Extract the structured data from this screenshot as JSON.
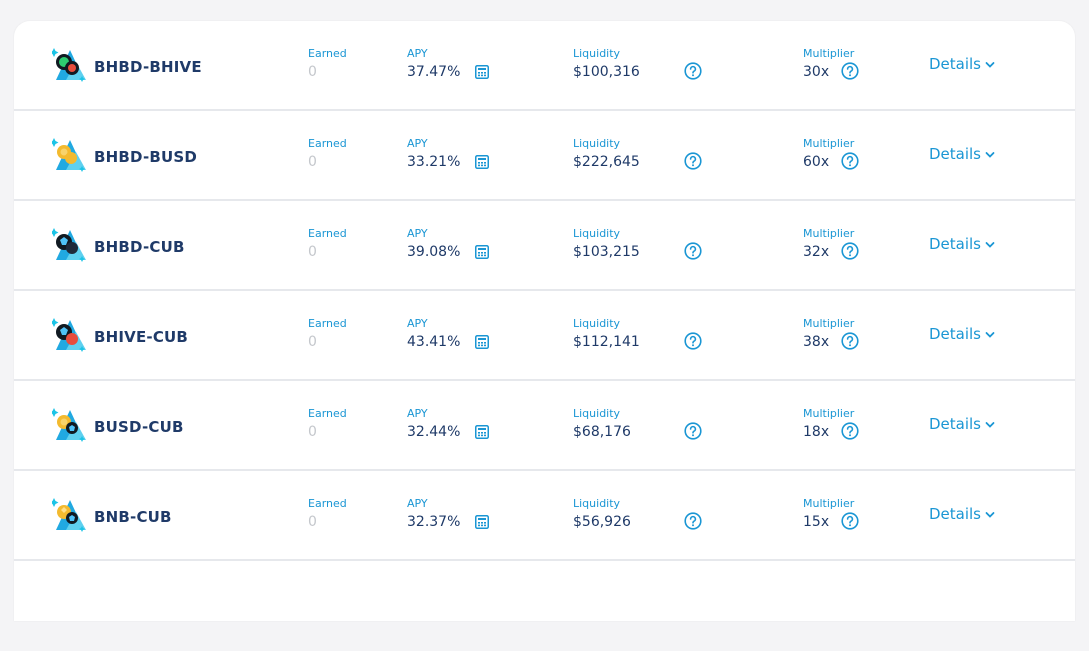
{
  "labels": {
    "earned": "Earned",
    "apy": "APY",
    "liquidity": "Liquidity",
    "multiplier": "Multiplier",
    "details": "Details"
  },
  "colors": {
    "accent": "#1a96d4",
    "text_dark": "#1f3a68",
    "muted": "#c4c7cc",
    "divider": "#e6e8ec"
  },
  "icons": {
    "calculator": "calculator-icon",
    "help": "help-circle-icon",
    "chevron": "chevron-down-icon"
  },
  "farms": [
    {
      "pair": "BHBD-BHIVE",
      "earned": "0",
      "apy": "37.47%",
      "liquidity": "$100,316",
      "multiplier": "30x"
    },
    {
      "pair": "BHBD-BUSD",
      "earned": "0",
      "apy": "33.21%",
      "liquidity": "$222,645",
      "multiplier": "60x"
    },
    {
      "pair": "BHBD-CUB",
      "earned": "0",
      "apy": "39.08%",
      "liquidity": "$103,215",
      "multiplier": "32x"
    },
    {
      "pair": "BHIVE-CUB",
      "earned": "0",
      "apy": "43.41%",
      "liquidity": "$112,141",
      "multiplier": "38x"
    },
    {
      "pair": "BUSD-CUB",
      "earned": "0",
      "apy": "32.44%",
      "liquidity": "$68,176",
      "multiplier": "18x"
    },
    {
      "pair": "BNB-CUB",
      "earned": "0",
      "apy": "32.37%",
      "liquidity": "$56,926",
      "multiplier": "15x"
    }
  ]
}
